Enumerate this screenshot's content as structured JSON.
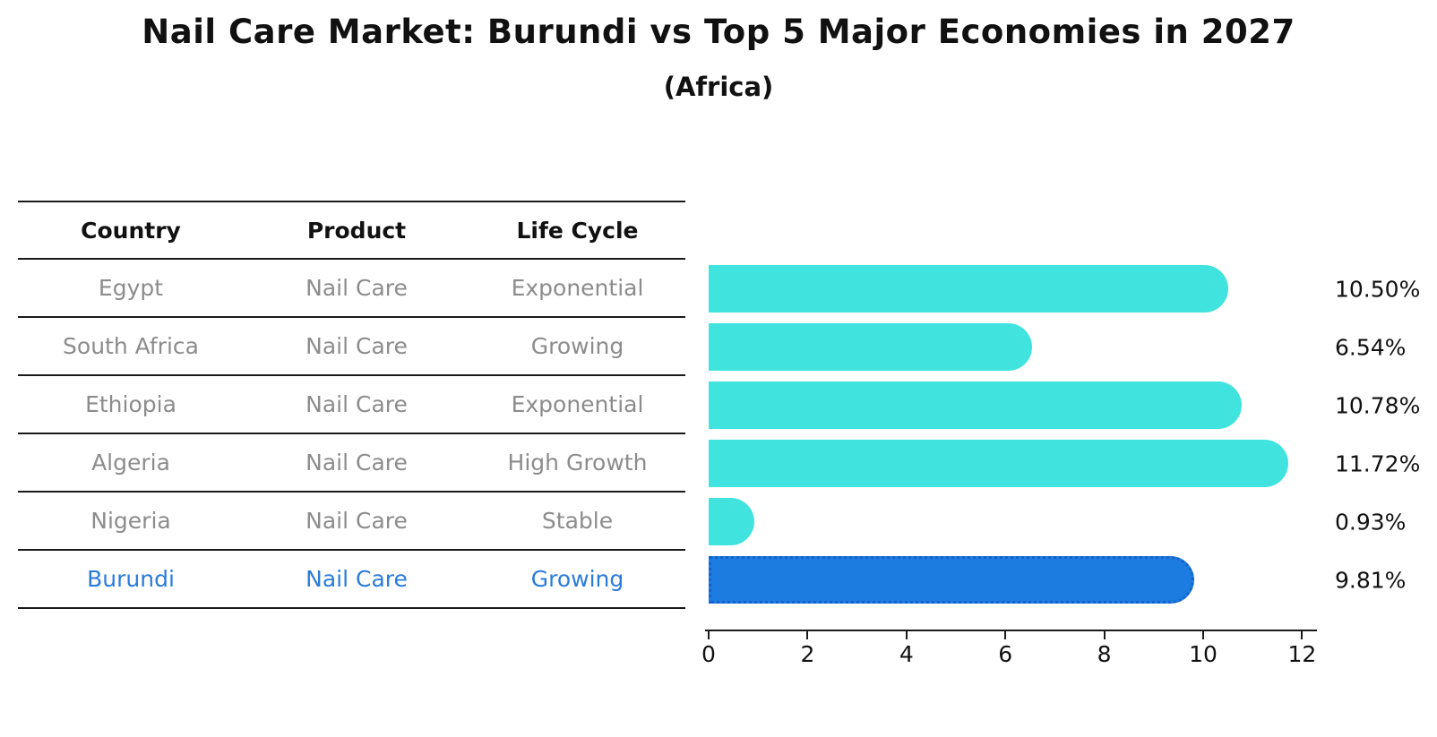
{
  "title": "Nail Care Market: Burundi vs Top 5 Major Economies in 2027",
  "subtitle": "(Africa)",
  "table": {
    "headers": {
      "country": "Country",
      "product": "Product",
      "life_cycle": "Life Cycle"
    },
    "rows": [
      {
        "country": "Egypt",
        "product": "Nail Care",
        "life_cycle": "Exponential",
        "highlight": false
      },
      {
        "country": "South Africa",
        "product": "Nail Care",
        "life_cycle": "Growing",
        "highlight": false
      },
      {
        "country": "Ethiopia",
        "product": "Nail Care",
        "life_cycle": "Exponential",
        "highlight": false
      },
      {
        "country": "Algeria",
        "product": "Nail Care",
        "life_cycle": "High Growth",
        "highlight": false
      },
      {
        "country": "Nigeria",
        "product": "Nail Care",
        "life_cycle": "Stable",
        "highlight": false
      },
      {
        "country": "Burundi",
        "product": "Nail Care",
        "life_cycle": "Growing",
        "highlight": true
      }
    ]
  },
  "chart_data": {
    "type": "bar",
    "orientation": "horizontal",
    "title": "Nail Care Market: Burundi vs Top 5 Major Economies in 2027",
    "subtitle": "(Africa)",
    "categories": [
      "Egypt",
      "South Africa",
      "Ethiopia",
      "Algeria",
      "Nigeria",
      "Burundi"
    ],
    "values": [
      10.5,
      6.54,
      10.78,
      11.72,
      0.93,
      9.81
    ],
    "value_labels": [
      "10.50%",
      "6.54%",
      "10.78%",
      "11.72%",
      "0.93%",
      "9.81%"
    ],
    "unit": "percent",
    "x_ticks": [
      0,
      2,
      4,
      6,
      8,
      10,
      12
    ],
    "xlim": [
      0,
      12.3
    ],
    "grid": false,
    "legend": false,
    "highlight_index": 5,
    "colors": {
      "bar": "#40E3DE",
      "highlight_bar": "#1C7CE0",
      "highlight_border": "#1463CC",
      "highlight_text": "#2B7CD9",
      "table_text": "#8C8C8C",
      "heading_text": "#111111"
    }
  }
}
